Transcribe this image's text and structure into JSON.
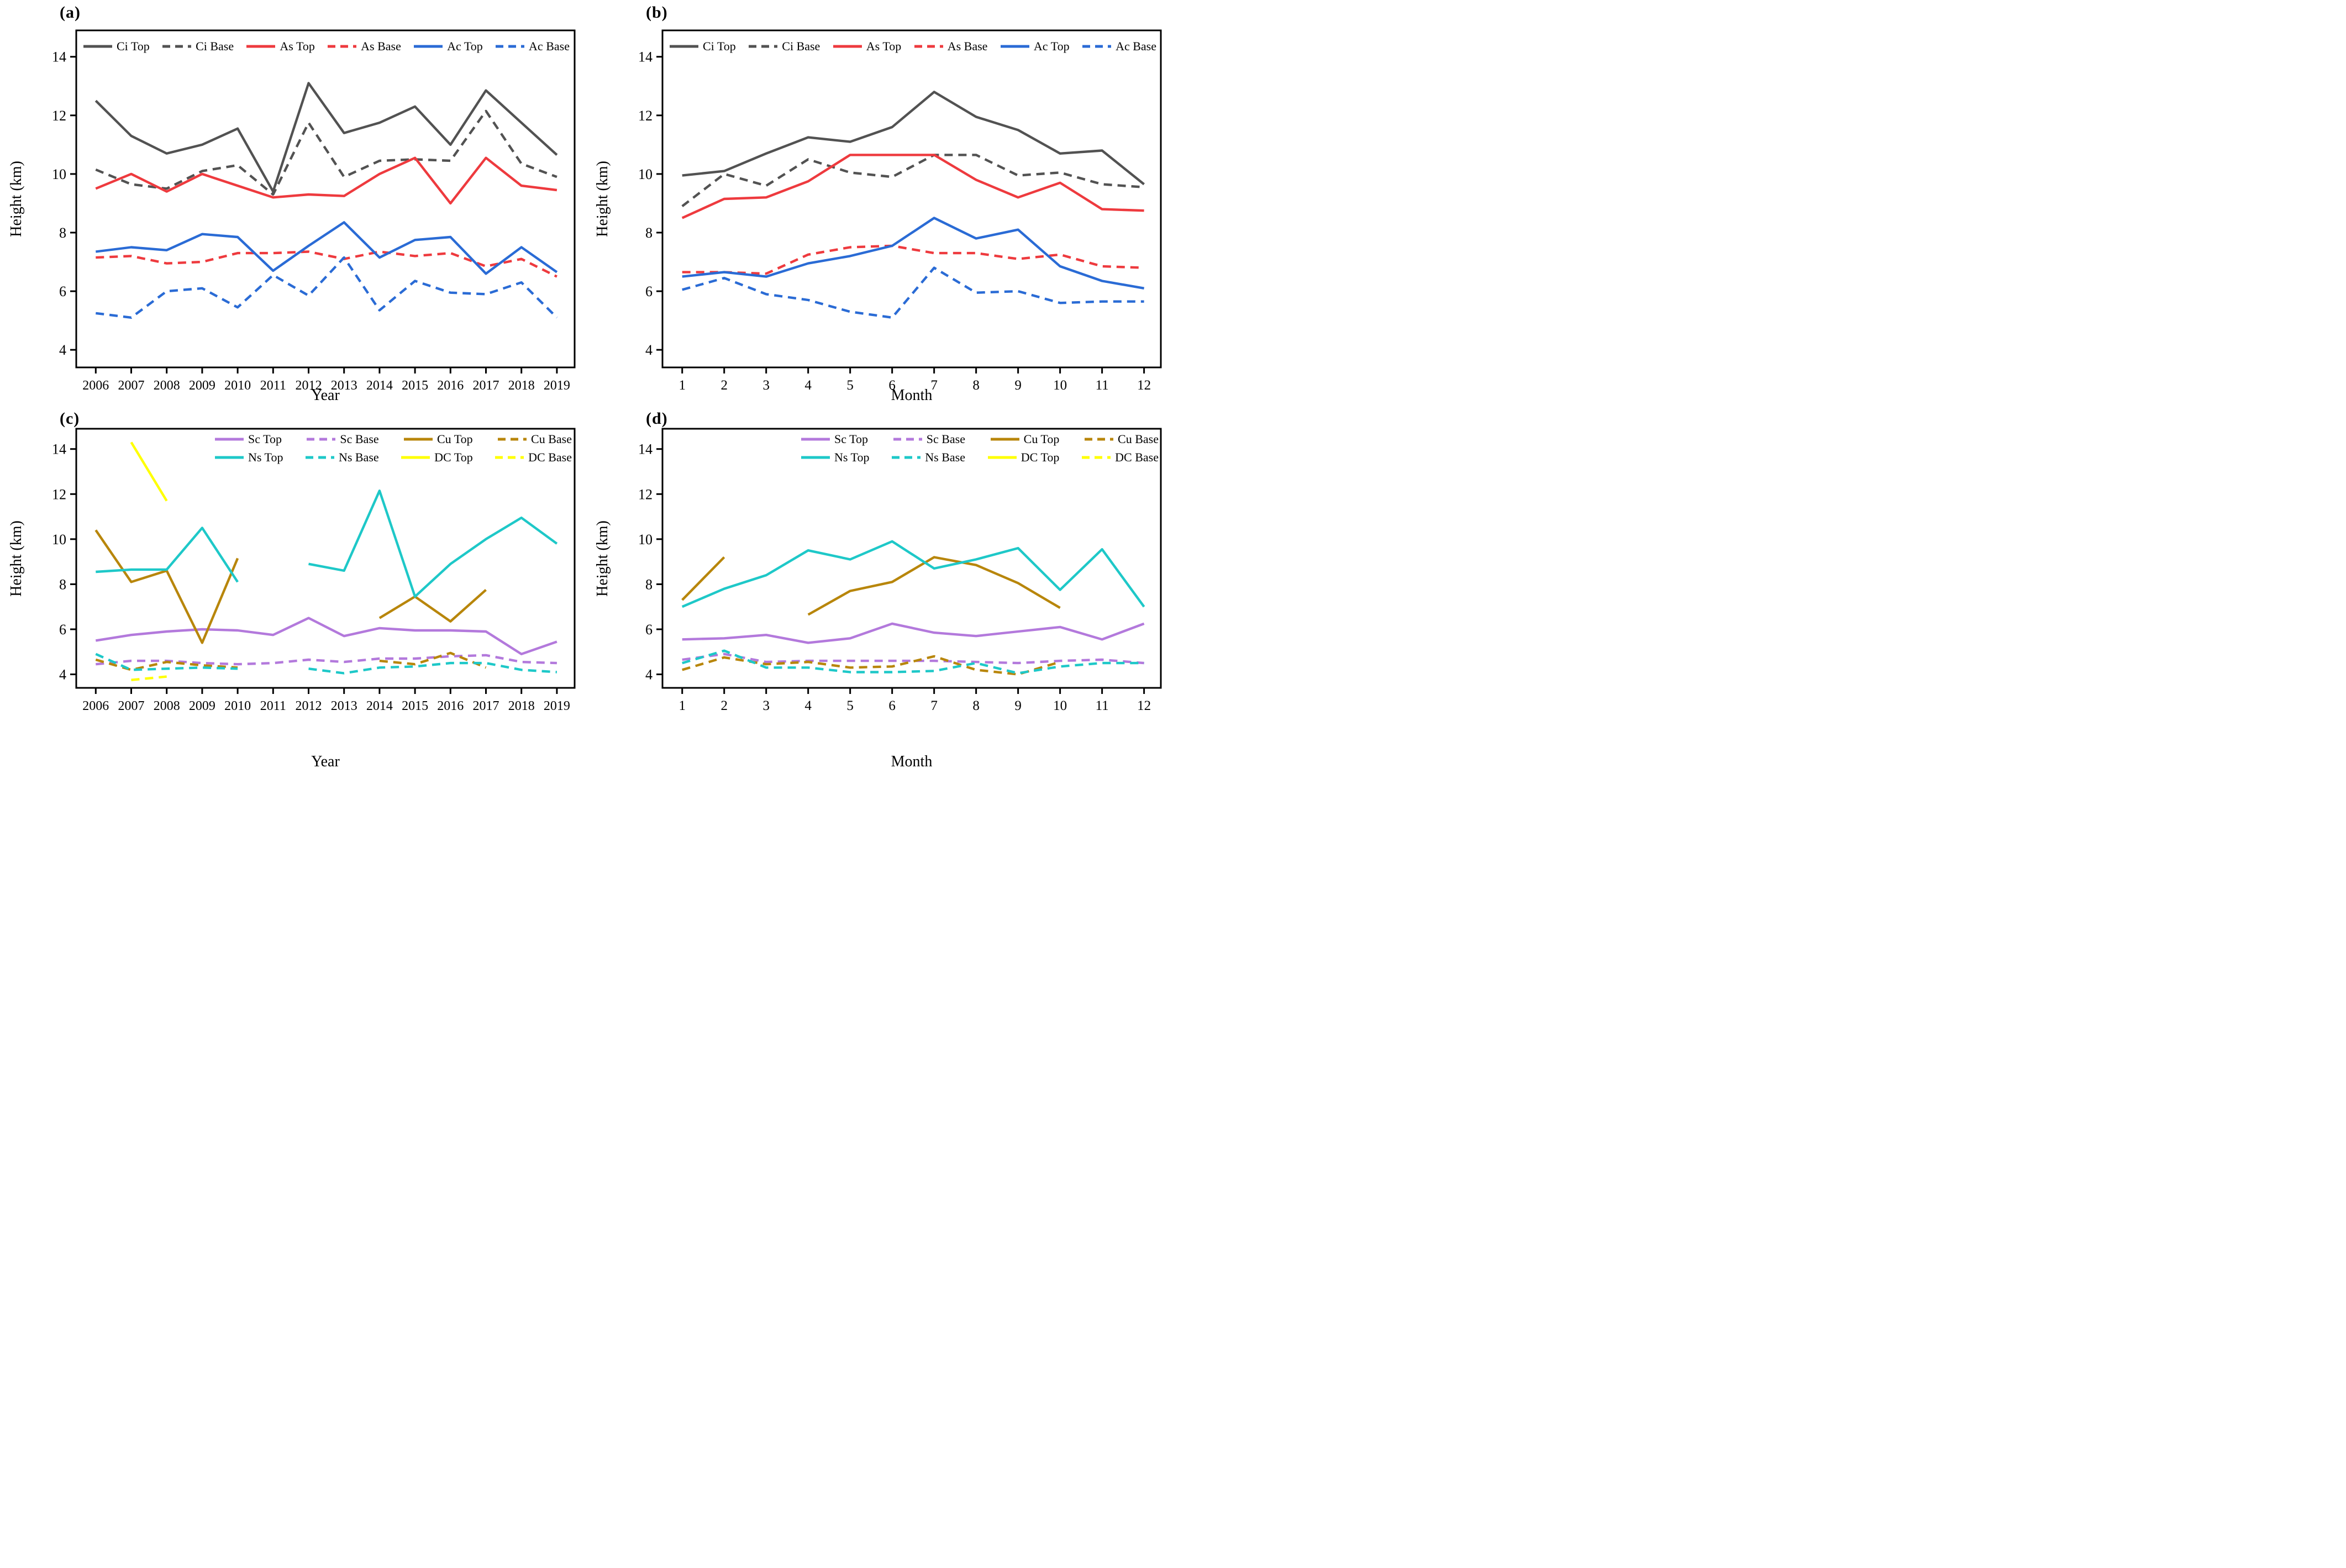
{
  "figure": {
    "background": "#ffffff",
    "frame_color": "#000000",
    "colors": {
      "ci": "#525252",
      "as": "#ee3a3e",
      "ac": "#2a6bd5",
      "sc": "#b379dc",
      "ns": "#1ec8c8",
      "cu": "#b8860b",
      "dc": "#ffff00"
    }
  },
  "chart_data": [
    {
      "type": "line",
      "panel_label": "(a)",
      "xlabel": "Year",
      "ylabel": "Height (km)",
      "x_categories": [
        2006,
        2007,
        2008,
        2009,
        2010,
        2011,
        2012,
        2013,
        2014,
        2015,
        2016,
        2017,
        2018,
        2019
      ],
      "y_ticks": [
        4,
        6,
        8,
        10,
        12,
        14
      ],
      "ylim": [
        4,
        14
      ],
      "legend_position": "top-inside-row",
      "legend_rows": [
        [
          0,
          1,
          2,
          3,
          4,
          5
        ]
      ],
      "series": [
        {
          "name": "Ci Top",
          "color_key": "ci",
          "dashed": false,
          "values": [
            12.5,
            11.3,
            10.7,
            11.0,
            11.55,
            9.4,
            13.1,
            11.4,
            11.75,
            12.3,
            11.0,
            12.85,
            11.75,
            10.65
          ]
        },
        {
          "name": "Ci Base",
          "color_key": "ci",
          "dashed": true,
          "values": [
            10.15,
            9.65,
            9.5,
            10.1,
            10.3,
            9.3,
            11.75,
            9.9,
            10.45,
            10.5,
            10.45,
            12.15,
            10.35,
            9.9
          ]
        },
        {
          "name": "As Top",
          "color_key": "as",
          "dashed": false,
          "values": [
            9.5,
            10.0,
            9.4,
            10.0,
            9.6,
            9.2,
            9.3,
            9.25,
            10.0,
            10.55,
            9.0,
            10.55,
            9.6,
            9.45
          ]
        },
        {
          "name": "As Base",
          "color_key": "as",
          "dashed": true,
          "values": [
            7.15,
            7.2,
            6.95,
            7.0,
            7.3,
            7.3,
            7.35,
            7.1,
            7.35,
            7.2,
            7.3,
            6.85,
            7.1,
            6.5
          ]
        },
        {
          "name": "Ac Top",
          "color_key": "ac",
          "dashed": false,
          "values": [
            7.35,
            7.5,
            7.4,
            7.95,
            7.85,
            6.7,
            7.55,
            8.35,
            7.15,
            7.75,
            7.85,
            6.6,
            7.5,
            6.65
          ]
        },
        {
          "name": "Ac Base",
          "color_key": "ac",
          "dashed": true,
          "values": [
            5.25,
            5.1,
            6.0,
            6.1,
            5.45,
            6.55,
            5.85,
            7.15,
            5.35,
            6.35,
            5.95,
            5.9,
            6.3,
            5.1
          ]
        }
      ]
    },
    {
      "type": "line",
      "panel_label": "(b)",
      "xlabel": "Month",
      "ylabel": "Height (km)",
      "x_categories": [
        1,
        2,
        3,
        4,
        5,
        6,
        7,
        8,
        9,
        10,
        11,
        12
      ],
      "y_ticks": [
        4,
        6,
        8,
        10,
        12,
        14
      ],
      "ylim": [
        4,
        14
      ],
      "legend_position": "top-inside-row",
      "legend_rows": [
        [
          0,
          1,
          2,
          3,
          4,
          5
        ]
      ],
      "series": [
        {
          "name": "Ci Top",
          "color_key": "ci",
          "dashed": false,
          "values": [
            9.95,
            10.1,
            10.7,
            11.25,
            11.1,
            11.6,
            12.8,
            11.95,
            11.5,
            10.7,
            10.8,
            9.65
          ]
        },
        {
          "name": "Ci Base",
          "color_key": "ci",
          "dashed": true,
          "values": [
            8.9,
            10.0,
            9.6,
            10.5,
            10.05,
            9.9,
            10.65,
            10.65,
            9.95,
            10.05,
            9.65,
            9.55
          ]
        },
        {
          "name": "As Top",
          "color_key": "as",
          "dashed": false,
          "values": [
            8.5,
            9.15,
            9.2,
            9.75,
            10.65,
            10.65,
            10.65,
            9.8,
            9.2,
            9.7,
            8.8,
            8.75
          ]
        },
        {
          "name": "As Base",
          "color_key": "as",
          "dashed": true,
          "values": [
            6.65,
            6.65,
            6.6,
            7.25,
            7.5,
            7.55,
            7.3,
            7.3,
            7.1,
            7.25,
            6.85,
            6.8
          ]
        },
        {
          "name": "Ac Top",
          "color_key": "ac",
          "dashed": false,
          "values": [
            6.5,
            6.65,
            6.5,
            6.95,
            7.2,
            7.55,
            8.5,
            7.8,
            8.1,
            6.85,
            6.35,
            6.1
          ]
        },
        {
          "name": "Ac Base",
          "color_key": "ac",
          "dashed": true,
          "values": [
            6.05,
            6.45,
            5.9,
            5.7,
            5.3,
            5.1,
            6.8,
            5.95,
            6.0,
            5.6,
            5.65,
            5.65
          ]
        }
      ]
    },
    {
      "type": "line",
      "panel_label": "(c)",
      "xlabel": "Year",
      "ylabel": "Height (km)",
      "x_categories": [
        2006,
        2007,
        2008,
        2009,
        2010,
        2011,
        2012,
        2013,
        2014,
        2015,
        2016,
        2017,
        2018,
        2019
      ],
      "y_ticks": [
        4,
        6,
        8,
        10,
        12,
        14
      ],
      "ylim": [
        4,
        14
      ],
      "legend_position": "top-right-inside-2rows",
      "legend_rows": [
        [
          0,
          1,
          2,
          3
        ],
        [
          4,
          5,
          6,
          7
        ]
      ],
      "series": [
        {
          "name": "Sc Top",
          "color_key": "sc",
          "dashed": false,
          "values": [
            5.5,
            5.75,
            5.9,
            6.0,
            5.95,
            5.75,
            6.5,
            5.7,
            6.05,
            5.95,
            5.95,
            5.9,
            4.9,
            5.45
          ]
        },
        {
          "name": "Sc Base",
          "color_key": "sc",
          "dashed": true,
          "values": [
            4.45,
            4.6,
            4.6,
            4.5,
            4.45,
            4.5,
            4.65,
            4.55,
            4.7,
            4.7,
            4.8,
            4.85,
            4.55,
            4.5
          ]
        },
        {
          "name": "Cu Top",
          "color_key": "cu",
          "dashed": false,
          "values": [
            10.4,
            8.1,
            8.6,
            5.4,
            9.15,
            null,
            null,
            null,
            6.5,
            7.45,
            6.35,
            7.75,
            null,
            null
          ]
        },
        {
          "name": "Cu Base",
          "color_key": "cu",
          "dashed": true,
          "values": [
            4.65,
            4.2,
            4.55,
            4.4,
            4.3,
            null,
            null,
            null,
            4.6,
            4.45,
            4.95,
            4.3,
            null,
            null
          ]
        },
        {
          "name": "Ns Top",
          "color_key": "ns",
          "dashed": false,
          "values": [
            8.55,
            8.65,
            8.65,
            10.5,
            8.1,
            null,
            8.9,
            8.6,
            12.15,
            7.45,
            8.9,
            10.0,
            10.95,
            9.8
          ]
        },
        {
          "name": "Ns Base",
          "color_key": "ns",
          "dashed": true,
          "values": [
            4.9,
            4.2,
            4.25,
            4.3,
            4.25,
            null,
            4.25,
            4.05,
            4.3,
            4.35,
            4.5,
            4.5,
            4.2,
            4.1
          ]
        },
        {
          "name": "DC Top",
          "color_key": "dc",
          "dashed": false,
          "values": [
            null,
            14.3,
            11.7,
            null,
            null,
            null,
            null,
            null,
            null,
            null,
            null,
            null,
            null,
            null
          ]
        },
        {
          "name": "DC Base",
          "color_key": "dc",
          "dashed": true,
          "values": [
            null,
            3.75,
            3.9,
            null,
            null,
            null,
            null,
            null,
            null,
            null,
            null,
            null,
            null,
            null
          ]
        }
      ]
    },
    {
      "type": "line",
      "panel_label": "(d)",
      "xlabel": "Month",
      "ylabel": "Height (km)",
      "x_categories": [
        1,
        2,
        3,
        4,
        5,
        6,
        7,
        8,
        9,
        10,
        11,
        12
      ],
      "y_ticks": [
        4,
        6,
        8,
        10,
        12,
        14
      ],
      "ylim": [
        4,
        14
      ],
      "legend_position": "top-right-inside-2rows",
      "legend_rows": [
        [
          0,
          1,
          2,
          3
        ],
        [
          4,
          5,
          6,
          7
        ]
      ],
      "series": [
        {
          "name": "Sc Top",
          "color_key": "sc",
          "dashed": false,
          "values": [
            5.55,
            5.6,
            5.75,
            5.4,
            5.6,
            6.25,
            5.85,
            5.7,
            5.9,
            6.1,
            5.55,
            6.25
          ]
        },
        {
          "name": "Sc Base",
          "color_key": "sc",
          "dashed": true,
          "values": [
            4.65,
            4.9,
            4.55,
            4.6,
            4.6,
            4.6,
            4.6,
            4.55,
            4.5,
            4.6,
            4.65,
            4.5
          ]
        },
        {
          "name": "Cu Top",
          "color_key": "cu",
          "dashed": false,
          "values": [
            7.3,
            9.2,
            null,
            6.65,
            7.7,
            8.1,
            9.2,
            8.85,
            8.05,
            6.95,
            null,
            null
          ]
        },
        {
          "name": "Cu Base",
          "color_key": "cu",
          "dashed": true,
          "values": [
            4.2,
            4.75,
            4.45,
            4.55,
            4.3,
            4.35,
            4.8,
            4.2,
            4.0,
            4.55,
            null,
            null
          ]
        },
        {
          "name": "Ns Top",
          "color_key": "ns",
          "dashed": false,
          "values": [
            7.0,
            7.8,
            8.4,
            9.5,
            9.1,
            9.9,
            8.7,
            9.1,
            9.6,
            7.75,
            9.55,
            7.0
          ]
        },
        {
          "name": "Ns Base",
          "color_key": "ns",
          "dashed": true,
          "values": [
            4.5,
            5.05,
            4.3,
            4.3,
            4.1,
            4.1,
            4.15,
            4.5,
            4.05,
            4.35,
            4.5,
            4.5
          ]
        },
        {
          "name": "DC Top",
          "color_key": "dc",
          "dashed": false,
          "values": [
            null,
            null,
            null,
            null,
            null,
            null,
            null,
            null,
            null,
            null,
            null,
            null
          ]
        },
        {
          "name": "DC Base",
          "color_key": "dc",
          "dashed": true,
          "values": [
            null,
            null,
            null,
            null,
            null,
            null,
            null,
            null,
            null,
            null,
            null,
            null
          ]
        }
      ]
    }
  ]
}
